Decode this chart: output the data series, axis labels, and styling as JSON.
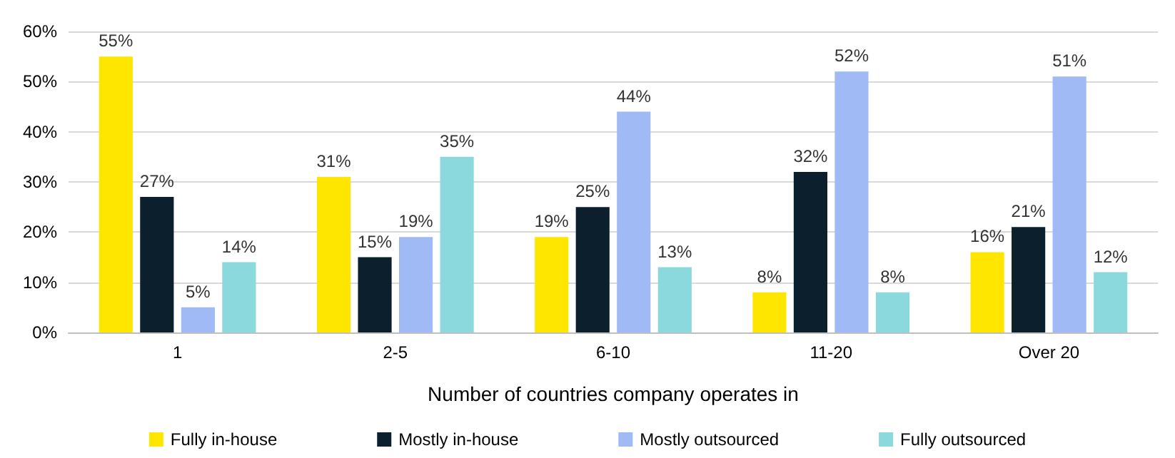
{
  "chart_data": {
    "type": "bar",
    "xlabel": "Number of countries company operates in",
    "categories": [
      "1",
      "2-5",
      "6-10",
      "11-20",
      "Over 20"
    ],
    "series": [
      {
        "name": "Fully in-house",
        "color": "#ffe600",
        "values": [
          55,
          31,
          19,
          8,
          16
        ],
        "value_labels": [
          "55%",
          "31%",
          "19%",
          "8%",
          "16%"
        ]
      },
      {
        "name": "Mostly in-house",
        "color": "#0c1f2c",
        "values": [
          27,
          15,
          25,
          32,
          21
        ],
        "value_labels": [
          "27%",
          "15%",
          "25%",
          "32%",
          "21%"
        ]
      },
      {
        "name": "Mostly outsourced",
        "color": "#9fbaf5",
        "values": [
          5,
          19,
          44,
          52,
          51
        ],
        "value_labels": [
          "5%",
          "19%",
          "44%",
          "52%",
          "51%"
        ]
      },
      {
        "name": "Fully outsourced",
        "color": "#8bd9dd",
        "values": [
          14,
          35,
          13,
          8,
          12
        ],
        "value_labels": [
          "14%",
          "35%",
          "13%",
          "8%",
          "12%"
        ]
      }
    ],
    "ylim": [
      0,
      60
    ],
    "yticks": [
      {
        "value": 0,
        "label": "0%"
      },
      {
        "value": 10,
        "label": "10%"
      },
      {
        "value": 20,
        "label": "20%"
      },
      {
        "value": 30,
        "label": "30%"
      },
      {
        "value": 40,
        "label": "40%"
      },
      {
        "value": 50,
        "label": "50%"
      },
      {
        "value": 60,
        "label": "60%"
      }
    ],
    "grid": "y",
    "legend": "bottom"
  }
}
